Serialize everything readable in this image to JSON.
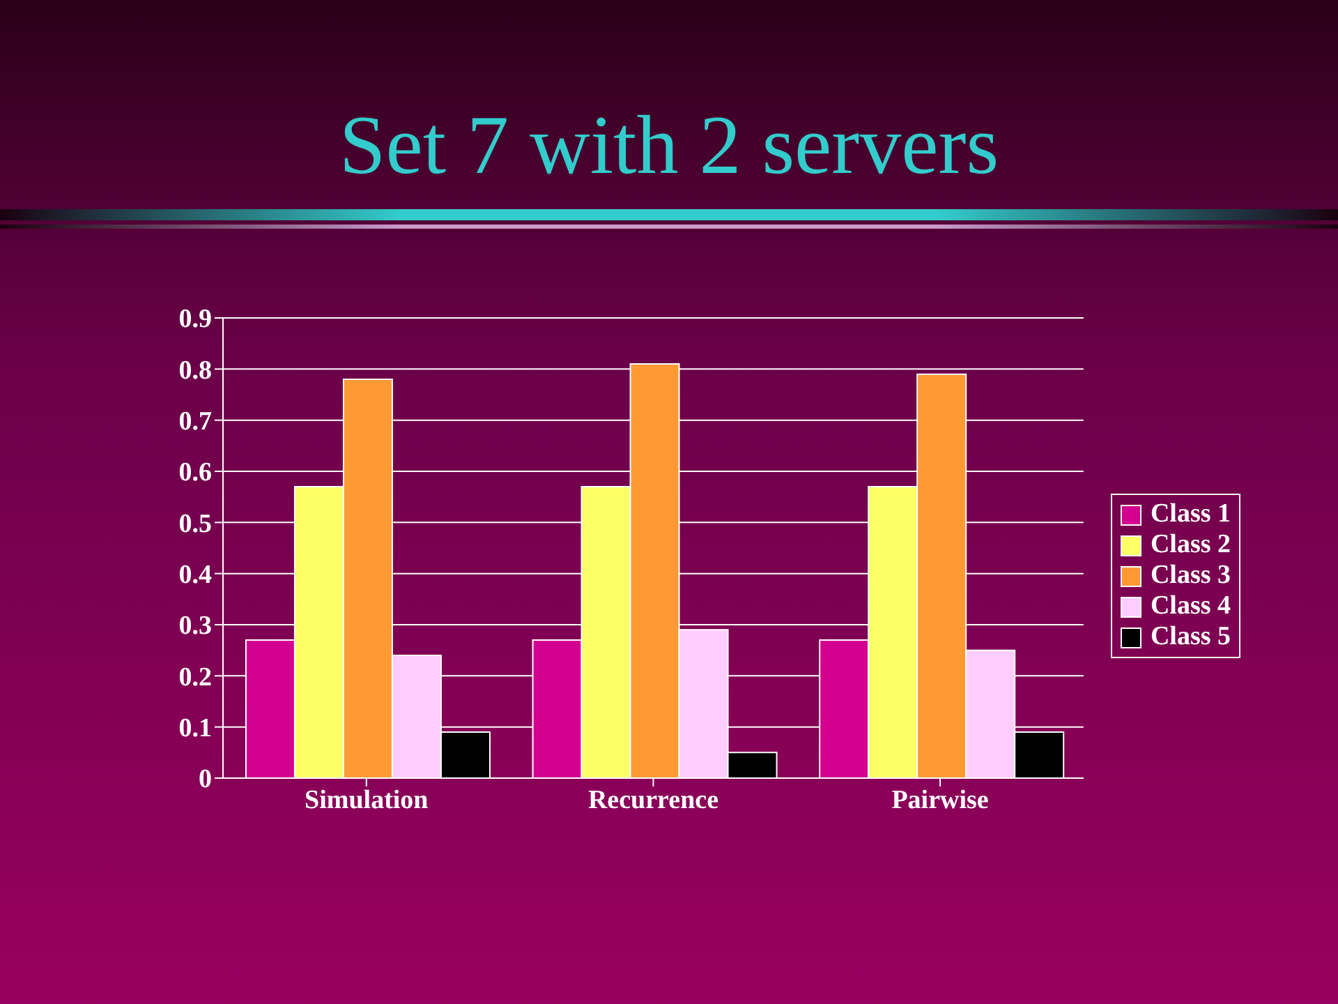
{
  "chart_data": {
    "type": "bar",
    "title": "Set 7 with 2 servers",
    "categories": [
      "Simulation",
      "Recurrence",
      "Pairwise"
    ],
    "series": [
      {
        "name": "Class 1",
        "color": "#d4008f",
        "values": [
          0.27,
          0.27,
          0.27
        ]
      },
      {
        "name": "Class 2",
        "color": "#ffff66",
        "values": [
          0.57,
          0.57,
          0.57
        ]
      },
      {
        "name": "Class 3",
        "color": "#ff9933",
        "values": [
          0.78,
          0.81,
          0.79
        ]
      },
      {
        "name": "Class 4",
        "color": "#ffccff",
        "values": [
          0.24,
          0.29,
          0.25
        ]
      },
      {
        "name": "Class 5",
        "color": "#000000",
        "values": [
          0.09,
          0.05,
          0.09
        ]
      }
    ],
    "ylim": [
      0,
      0.9
    ],
    "yticks": [
      0,
      0.1,
      0.2,
      0.3,
      0.4,
      0.5,
      0.6,
      0.7,
      0.8,
      0.9
    ],
    "grid": "y",
    "legend": "right"
  }
}
